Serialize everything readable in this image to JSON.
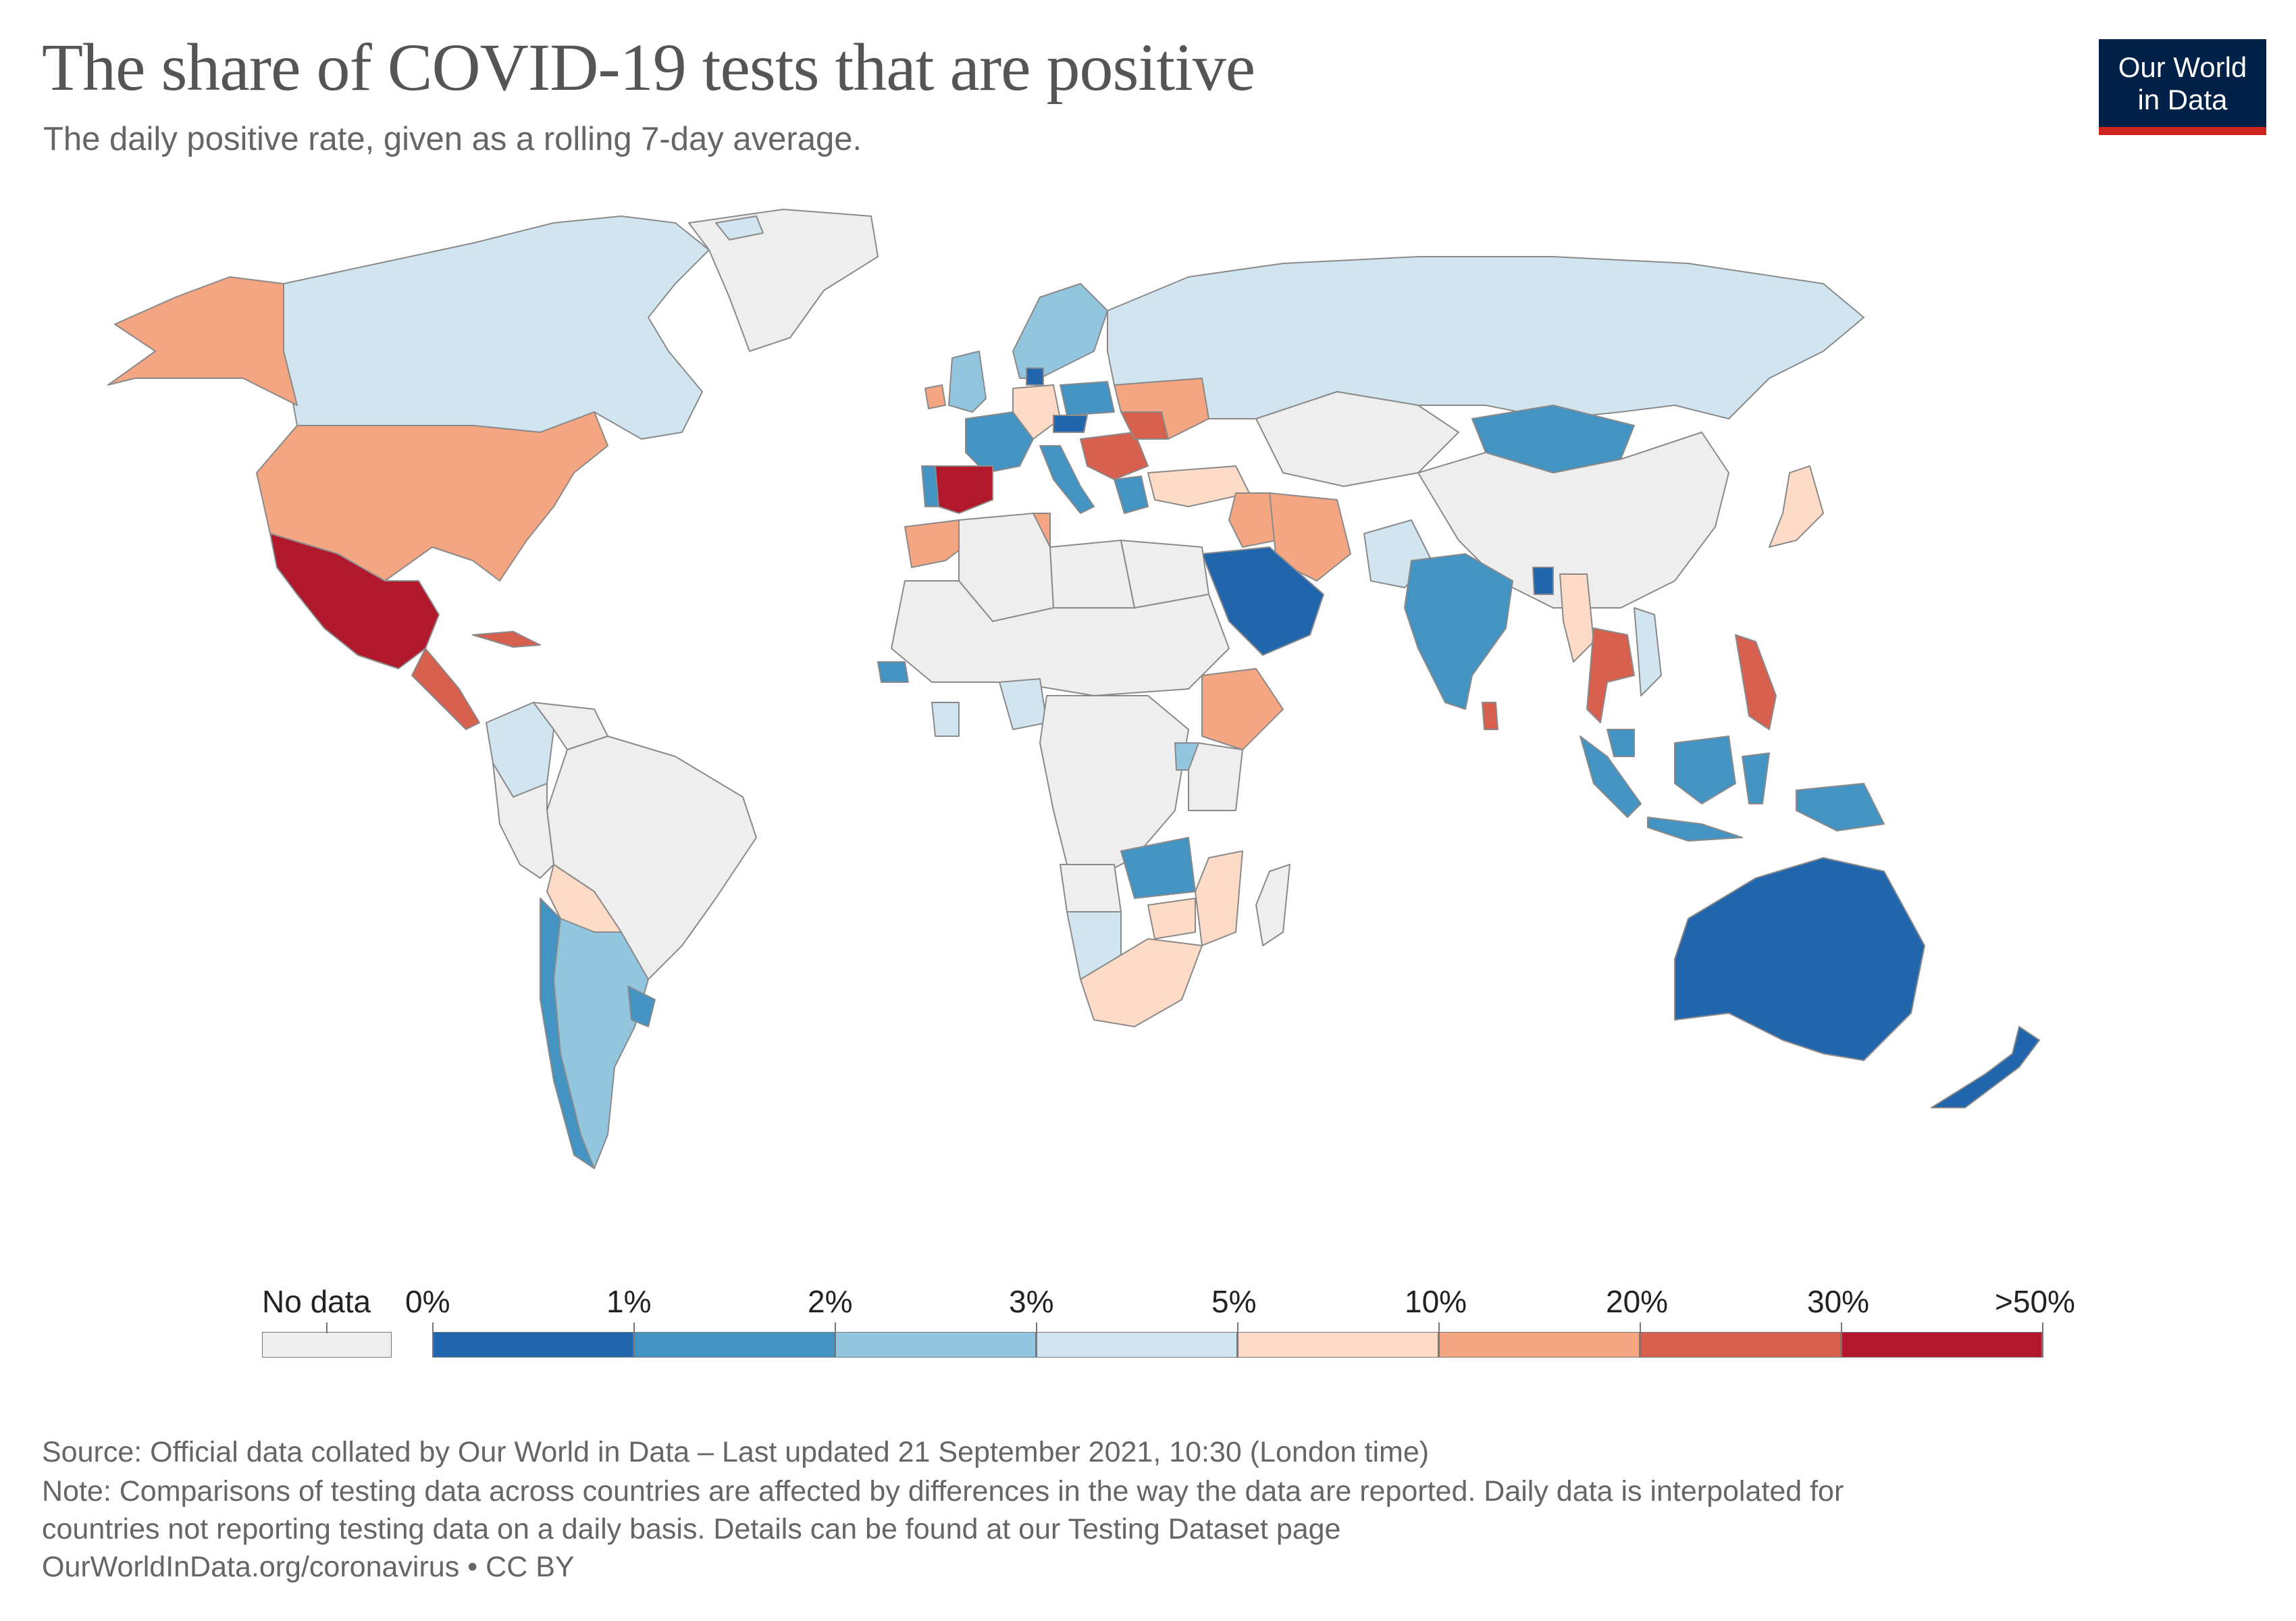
{
  "title": "The share of COVID-19 tests that are positive",
  "subtitle": "The daily positive rate, given as a rolling 7-day average.",
  "logo": {
    "line1": "Our World",
    "line2": "in Data"
  },
  "colors": {
    "no_data": "#eeeeee",
    "c0": "#2166ac",
    "c1": "#4393c3",
    "c2": "#92c5de",
    "c3": "#d1e5f0",
    "c4": "#fddbc7",
    "c5": "#f4a582",
    "c6": "#d6604d",
    "c7": "#b2182b"
  },
  "legend": {
    "no_data_label": "No data",
    "ticks": [
      "0%",
      "1%",
      "2%",
      "3%",
      "5%",
      "10%",
      "20%",
      "30%",
      ">50%"
    ]
  },
  "regions": [
    {
      "name": "Canada",
      "bin": 3
    },
    {
      "name": "United States",
      "bin": 5
    },
    {
      "name": "Alaska",
      "bin": 5
    },
    {
      "name": "Greenland",
      "bin": -1
    },
    {
      "name": "Mexico",
      "bin": 7
    },
    {
      "name": "Central America",
      "bin": 6
    },
    {
      "name": "Cuba",
      "bin": 6
    },
    {
      "name": "Colombia",
      "bin": 3
    },
    {
      "name": "Venezuela",
      "bin": -1
    },
    {
      "name": "Brazil",
      "bin": -1
    },
    {
      "name": "Peru",
      "bin": -1
    },
    {
      "name": "Bolivia",
      "bin": 4
    },
    {
      "name": "Chile",
      "bin": 1
    },
    {
      "name": "Argentina",
      "bin": 2
    },
    {
      "name": "Uruguay",
      "bin": 1
    },
    {
      "name": "Iceland",
      "bin": 3
    },
    {
      "name": "United Kingdom",
      "bin": 2
    },
    {
      "name": "Ireland",
      "bin": 5
    },
    {
      "name": "Scandinavia",
      "bin": 2
    },
    {
      "name": "Denmark",
      "bin": 0
    },
    {
      "name": "France",
      "bin": 1
    },
    {
      "name": "Germany",
      "bin": 4
    },
    {
      "name": "Poland",
      "bin": 1
    },
    {
      "name": "Czechia",
      "bin": 0
    },
    {
      "name": "Spain",
      "bin": 7
    },
    {
      "name": "Portugal",
      "bin": 1
    },
    {
      "name": "Italy",
      "bin": 1
    },
    {
      "name": "Balkans",
      "bin": 6
    },
    {
      "name": "Greece",
      "bin": 1
    },
    {
      "name": "Ukraine",
      "bin": 5
    },
    {
      "name": "Romania",
      "bin": 6
    },
    {
      "name": "Russia",
      "bin": 3
    },
    {
      "name": "Kazakhstan",
      "bin": -1
    },
    {
      "name": "Mongolia",
      "bin": 1
    },
    {
      "name": "China",
      "bin": -1
    },
    {
      "name": "Japan",
      "bin": 4
    },
    {
      "name": "Turkey",
      "bin": 4
    },
    {
      "name": "Iran",
      "bin": 5
    },
    {
      "name": "Iraq",
      "bin": 5
    },
    {
      "name": "Saudi Arabia",
      "bin": 0
    },
    {
      "name": "Pakistan",
      "bin": 3
    },
    {
      "name": "India",
      "bin": 1
    },
    {
      "name": "Sri Lanka",
      "bin": 6
    },
    {
      "name": "Bangladesh",
      "bin": 0
    },
    {
      "name": "Myanmar",
      "bin": 4
    },
    {
      "name": "Thailand",
      "bin": 6
    },
    {
      "name": "Vietnam",
      "bin": 3
    },
    {
      "name": "Philippines",
      "bin": 6
    },
    {
      "name": "Malaysia",
      "bin": 1
    },
    {
      "name": "Sumatra",
      "bin": 1
    },
    {
      "name": "Borneo",
      "bin": 1
    },
    {
      "name": "Sulawesi",
      "bin": 1
    },
    {
      "name": "Java",
      "bin": 1
    },
    {
      "name": "New Guinea",
      "bin": 1
    },
    {
      "name": "Australia",
      "bin": 0
    },
    {
      "name": "New Zealand",
      "bin": 0
    },
    {
      "name": "Morocco",
      "bin": 5
    },
    {
      "name": "Algeria",
      "bin": -1
    },
    {
      "name": "Libya",
      "bin": -1
    },
    {
      "name": "Egypt",
      "bin": -1
    },
    {
      "name": "Tunisia",
      "bin": 5
    },
    {
      "name": "Sahel",
      "bin": -1
    },
    {
      "name": "Senegal",
      "bin": 1
    },
    {
      "name": "Nigeria",
      "bin": 3
    },
    {
      "name": "Ghana",
      "bin": 3
    },
    {
      "name": "Ethiopia",
      "bin": 5
    },
    {
      "name": "Central Africa",
      "bin": -1
    },
    {
      "name": "Kenya",
      "bin": -1
    },
    {
      "name": "Uganda",
      "bin": 2
    },
    {
      "name": "Zambia",
      "bin": 1
    },
    {
      "name": "Zimbabwe",
      "bin": 4
    },
    {
      "name": "Mozambique",
      "bin": 4
    },
    {
      "name": "Angola",
      "bin": -1
    },
    {
      "name": "Namibia",
      "bin": 3
    },
    {
      "name": "South Africa",
      "bin": 4
    },
    {
      "name": "Madagascar",
      "bin": -1
    }
  ],
  "footer": {
    "source": "Source: Official data collated by Our World in Data – Last updated 21 September 2021, 10:30 (London time)",
    "note1": "Note: Comparisons of testing data across countries are affected by differences in the way the data are reported. Daily data is interpolated for",
    "note2": "countries not reporting testing data on a daily basis. Details can be found at our Testing Dataset page",
    "credit": "OurWorldInData.org/coronavirus • CC BY"
  }
}
